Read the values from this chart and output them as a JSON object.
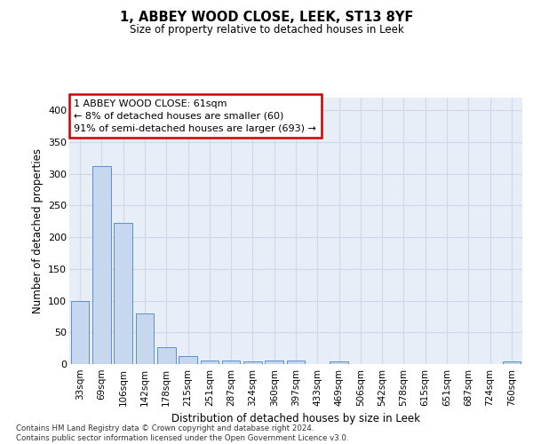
{
  "title": "1, ABBEY WOOD CLOSE, LEEK, ST13 8YF",
  "subtitle": "Size of property relative to detached houses in Leek",
  "xlabel": "Distribution of detached houses by size in Leek",
  "ylabel": "Number of detached properties",
  "bin_labels": [
    "33sqm",
    "69sqm",
    "106sqm",
    "142sqm",
    "178sqm",
    "215sqm",
    "251sqm",
    "287sqm",
    "324sqm",
    "360sqm",
    "397sqm",
    "433sqm",
    "469sqm",
    "506sqm",
    "542sqm",
    "578sqm",
    "615sqm",
    "651sqm",
    "687sqm",
    "724sqm",
    "760sqm"
  ],
  "bar_heights": [
    99,
    312,
    222,
    80,
    26,
    13,
    6,
    5,
    4,
    6,
    6,
    0,
    4,
    0,
    0,
    0,
    0,
    0,
    0,
    0,
    4
  ],
  "bar_color": "#c5d8ee",
  "bar_edge_color": "#5b8fc9",
  "annotation_text": "1 ABBEY WOOD CLOSE: 61sqm\n← 8% of detached houses are smaller (60)\n91% of semi-detached houses are larger (693) →",
  "annotation_box_color": "#ffffff",
  "annotation_box_edge": "#cc0000",
  "grid_color": "#d0d8e8",
  "background_color": "#e8eef8",
  "ylim": [
    0,
    420
  ],
  "yticks": [
    0,
    50,
    100,
    150,
    200,
    250,
    300,
    350,
    400
  ],
  "footer_line1": "Contains HM Land Registry data © Crown copyright and database right 2024.",
  "footer_line2": "Contains public sector information licensed under the Open Government Licence v3.0."
}
